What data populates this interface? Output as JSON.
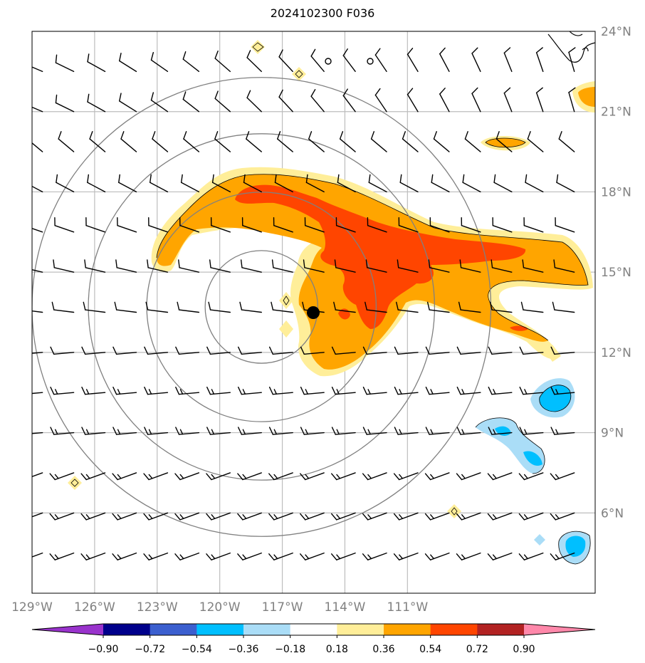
{
  "title": "2024102300 F036",
  "map": {
    "lon_range": [
      -129,
      -102
    ],
    "lat_range": [
      3,
      24
    ],
    "lon_ticks": [
      {
        "value": -129,
        "label": "129°W"
      },
      {
        "value": -126,
        "label": "126°W"
      },
      {
        "value": -123,
        "label": "123°W"
      },
      {
        "value": -120,
        "label": "120°W"
      },
      {
        "value": -117,
        "label": "117°W"
      },
      {
        "value": -114,
        "label": "114°W"
      },
      {
        "value": -111,
        "label": "111°W"
      }
    ],
    "lat_ticks": [
      {
        "value": 24,
        "label": "24°N"
      },
      {
        "value": 21,
        "label": "21°N"
      },
      {
        "value": 18,
        "label": "18°N"
      },
      {
        "value": 15,
        "label": "15°N"
      },
      {
        "value": 12,
        "label": "12°N"
      },
      {
        "value": 9,
        "label": "9°N"
      },
      {
        "value": 6,
        "label": "6°N"
      }
    ],
    "storm_center": {
      "lon": -118.0,
      "lat": 13.7
    },
    "range_rings_deg": [
      2.7,
      5.5,
      8.3,
      11.0
    ],
    "colors": {
      "grid": "#bdbdbd",
      "rings": "#808080",
      "light_yellow": "#ffee99",
      "orange": "#ffa500",
      "red_orange": "#ff4500",
      "light_blue": "#aaddf7",
      "cyan": "#00bfff",
      "barb": "#000000"
    }
  },
  "colorbar": {
    "colors": [
      "#9933cc",
      "#00008b",
      "#3b5fcf",
      "#00bfff",
      "#aaddf7",
      "#ffffff",
      "#ffee99",
      "#ffa500",
      "#ff4500",
      "#b22222",
      "#ff88aa"
    ],
    "labels": [
      "−0.90",
      "−0.72",
      "−0.54",
      "−0.36",
      "−0.18",
      "0.18",
      "0.36",
      "0.54",
      "0.72",
      "0.90"
    ]
  }
}
